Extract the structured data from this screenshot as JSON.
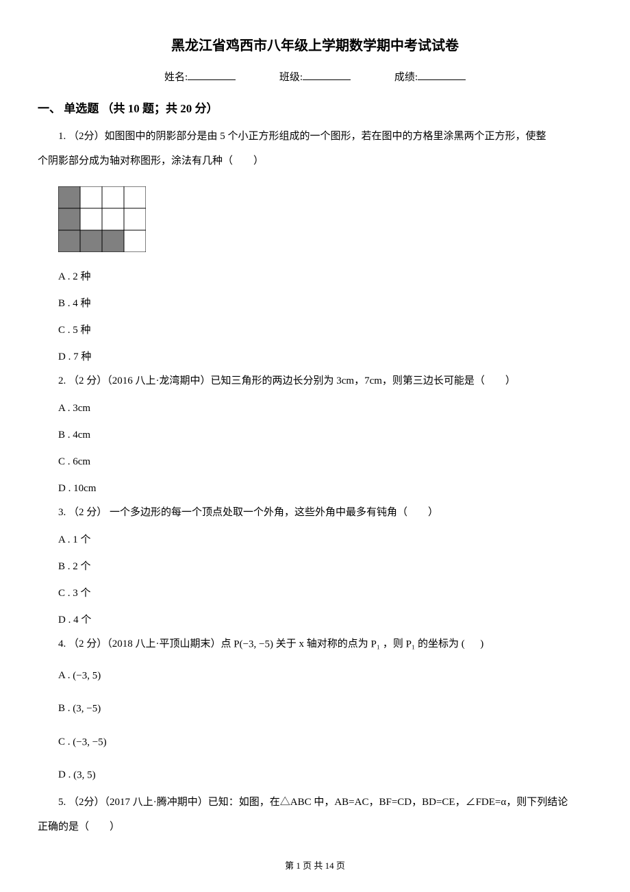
{
  "title": "黑龙江省鸡西市八年级上学期数学期中考试试卷",
  "info": {
    "name_label": "姓名:",
    "class_label": "班级:",
    "score_label": "成绩:"
  },
  "section_header": "一、 单选题 （共 10 题；共 20 分）",
  "q1": {
    "stem_line1": "1. （2分）如图图中的阴影部分是由 5 个小正方形组成的一个图形，若在图中的方格里涂黑两个正方形，使整",
    "stem_line2": "个阴影部分成为轴对称图形，涂法有几种（　　）",
    "opt_a": "A . 2 种",
    "opt_b": "B . 4 种",
    "opt_c": "C . 5 种",
    "opt_d": "D . 7 种",
    "grid": {
      "rows": 3,
      "cols": 4,
      "cell_size": 32,
      "shaded_cells": [
        [
          0,
          0
        ],
        [
          1,
          0
        ],
        [
          2,
          0
        ],
        [
          2,
          1
        ],
        [
          2,
          2
        ]
      ],
      "border_color": "#000000",
      "shade_color": "#808080",
      "bg_color": "#ffffff"
    }
  },
  "q2": {
    "stem": "2. （2 分）（2016 八上·龙湾期中）已知三角形的两边长分别为 3cm，7cm，则第三边长可能是（　　）",
    "opt_a": "A . 3cm",
    "opt_b": "B . 4cm",
    "opt_c": "C . 6cm",
    "opt_d": "D . 10cm"
  },
  "q3": {
    "stem": "3. （2 分）  一个多边形的每一个顶点处取一个外角，这些外角中最多有钝角（　　）",
    "opt_a": "A . 1 个",
    "opt_b": "B . 2 个",
    "opt_c": "C . 3 个",
    "opt_d": "D . 4 个"
  },
  "q4": {
    "stem_p1": "4. （2 分）（2018 八上·平顶山期末）点 ",
    "stem_p_expr": "P(−3, −5)",
    "stem_p2": " 关于 x 轴对称的点为 ",
    "stem_p1_expr": "P₁",
    "stem_p3": " ，则 ",
    "stem_p1_expr2": "P₁",
    "stem_p4": " 的坐标为 ",
    "stem_paren_open": "(",
    "stem_paren_close": ")",
    "opt_a_label": "A . ",
    "opt_a_expr": "(−3, 5)",
    "opt_b_label": "B . ",
    "opt_b_expr": "(3, −5)",
    "opt_c_label": "C . ",
    "opt_c_expr": "(−3, −5)",
    "opt_d_label": "D . ",
    "opt_d_expr": "(3, 5)"
  },
  "q5": {
    "stem_line1": "5. （2分）（2017 八上·腾冲期中）已知：如图，在△ABC 中，AB=AC，BF=CD，BD=CE，∠FDE=α，则下列结论",
    "stem_line2": "正确的是（　　）"
  },
  "footer": "第 1 页 共 14 页"
}
